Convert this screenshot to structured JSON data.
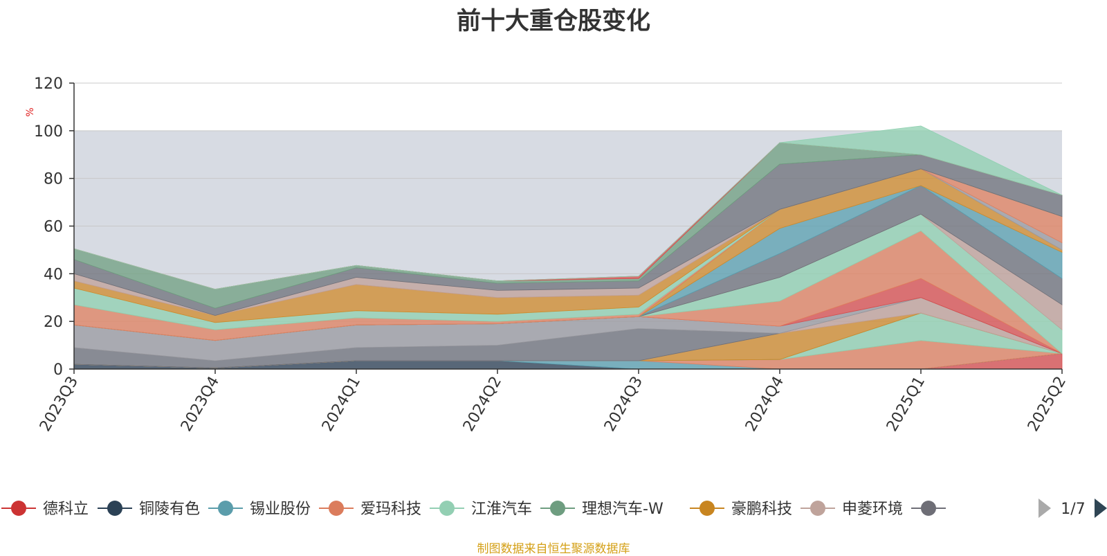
{
  "chart_data": {
    "type": "area",
    "title": "前十大重仓股变化",
    "ylabel": "%",
    "xlabel": "",
    "ylim": [
      0,
      120
    ],
    "y_ticks": [
      "0",
      "20",
      "40",
      "60",
      "80",
      "100",
      "120"
    ],
    "categories": [
      "2023Q3",
      "2023Q4",
      "2024Q1",
      "2024Q2",
      "2024Q3",
      "2024Q4",
      "2025Q1",
      "2025Q2"
    ],
    "grid": true,
    "shaded_band": [
      0,
      100
    ],
    "shaded_band_color": "#d7dbe3",
    "series": [
      {
        "name": "德科立",
        "color": "#d94d4d",
        "values": [
          0,
          0,
          0,
          0,
          0,
          0,
          0,
          6.5
        ]
      },
      {
        "name": "铜陵有色",
        "color": "#2e4054",
        "values": [
          2,
          0.5,
          3.5,
          3.5,
          0,
          0,
          0,
          0
        ]
      },
      {
        "name": "锡业股份",
        "color": "#5aa0b0",
        "values": [
          0,
          0,
          0,
          0,
          3.5,
          0,
          0,
          0
        ]
      },
      {
        "name": "爱玛科技",
        "color": "#e0805f",
        "values": [
          0,
          0,
          0,
          0,
          0,
          4,
          12,
          0
        ]
      },
      {
        "name": "江淮汽车",
        "color": "#8fd0b0",
        "values": [
          0,
          0,
          0,
          0,
          0,
          0,
          11.5,
          0
        ]
      },
      {
        "name": "理想汽车-W",
        "color": "#6f9f80",
        "values": [
          0,
          0,
          0,
          0,
          0,
          0,
          0,
          0
        ]
      },
      {
        "name": "豪鹏科技",
        "color": "#d08a2a",
        "values": [
          0,
          0,
          0,
          0,
          0,
          11,
          0,
          0
        ]
      },
      {
        "name": "申菱环境",
        "color": "#c0a098",
        "values": [
          0,
          0,
          0,
          0,
          0,
          0,
          6.5,
          0
        ]
      },
      {
        "name": "",
        "color": "#6e7079",
        "values": [
          7,
          3,
          5.5,
          6.5,
          13.5,
          0,
          0,
          0
        ]
      },
      {
        "name": "",
        "color": "#9a9aa0",
        "values": [
          9.5,
          8.5,
          9.5,
          9,
          5,
          3,
          0,
          0
        ]
      },
      {
        "name": "",
        "color": "#d94d4d",
        "values": [
          0,
          0,
          0,
          0,
          0,
          0,
          8,
          0
        ]
      },
      {
        "name": "",
        "color": "#e0805f",
        "values": [
          0,
          0,
          0,
          0,
          0,
          10.5,
          20,
          0
        ]
      },
      {
        "name": "",
        "color": "#8fd0b0",
        "values": [
          0,
          0,
          0,
          0,
          0,
          10,
          7,
          10
        ]
      },
      {
        "name": "",
        "color": "#c0a098",
        "values": [
          0,
          0,
          0,
          0,
          0,
          0,
          0,
          10.5
        ]
      },
      {
        "name": "",
        "color": "#6e7079",
        "values": [
          0,
          0,
          0,
          0,
          0,
          10,
          12,
          11
        ]
      },
      {
        "name": "",
        "color": "#5aa0b0",
        "values": [
          0,
          0,
          0,
          0,
          0,
          10.5,
          0,
          11
        ]
      },
      {
        "name": "",
        "color": "#d08a2a",
        "values": [
          0,
          0,
          0,
          0,
          0,
          8,
          7,
          1
        ]
      },
      {
        "name": "",
        "color": "#9a9aa0",
        "values": [
          0,
          0,
          0,
          0,
          0,
          0,
          0,
          3
        ]
      },
      {
        "name": "",
        "color": "#e0805f",
        "values": [
          8.5,
          4.5,
          3,
          1,
          1,
          0,
          0,
          11
        ]
      },
      {
        "name": "",
        "color": "#8fd0b0",
        "values": [
          7,
          3,
          3,
          3,
          3,
          0,
          0,
          0
        ]
      },
      {
        "name": "",
        "color": "#d08a2a",
        "values": [
          3,
          3,
          11,
          7,
          5,
          0,
          0,
          0
        ]
      },
      {
        "name": "",
        "color": "#c0a098",
        "values": [
          3,
          0,
          3,
          3,
          3,
          0,
          0,
          0
        ]
      },
      {
        "name": "",
        "color": "#6e7079",
        "values": [
          6,
          3,
          4,
          3,
          3,
          19,
          6,
          9
        ]
      },
      {
        "name": "",
        "color": "#6f9f80",
        "values": [
          4.5,
          8,
          1,
          1,
          1,
          9,
          0,
          0
        ]
      },
      {
        "name": "",
        "color": "#d94d4d",
        "values": [
          0,
          0,
          0,
          0,
          1,
          0,
          0,
          0
        ]
      },
      {
        "name": "",
        "color": "#8fd0b0",
        "values": [
          0,
          0,
          0,
          0,
          0,
          0,
          12,
          0
        ]
      }
    ],
    "legend": {
      "position": "bottom",
      "items": [
        {
          "name": "德科立",
          "color": "#cc3333"
        },
        {
          "name": "铜陵有色",
          "color": "#2b4155"
        },
        {
          "name": "锡业股份",
          "color": "#5b9dab"
        },
        {
          "name": "爱玛科技",
          "color": "#db7c5c"
        },
        {
          "name": "江淮汽车",
          "color": "#93cfb3"
        },
        {
          "name": "理想汽车-W",
          "color": "#6e9d80"
        },
        {
          "name": "豪鹏科技",
          "color": "#c88520"
        },
        {
          "name": "申菱环境",
          "color": "#bfa39b"
        },
        {
          "name": "",
          "color": "#6e6e76"
        }
      ],
      "page": "1/7"
    },
    "source": "制图数据来自恒生聚源数据库"
  }
}
